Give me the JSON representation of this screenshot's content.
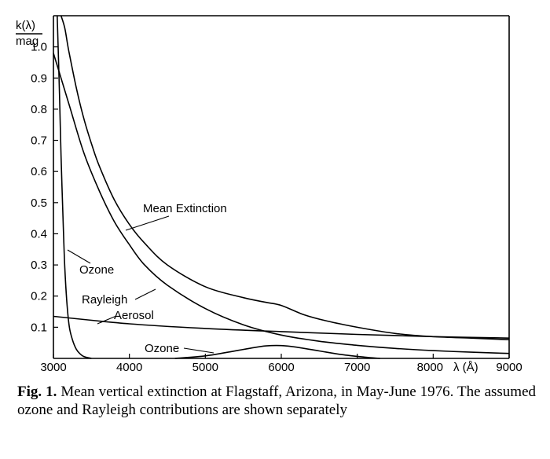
{
  "chart_data": {
    "type": "line",
    "ylabel_num": "k(λ)",
    "ylabel_den": "mag",
    "xlabel": "λ (Å)",
    "xlim": [
      3000,
      9000
    ],
    "ylim": [
      0,
      1.1
    ],
    "xticks": [
      3000,
      4000,
      5000,
      6000,
      7000,
      8000,
      9000
    ],
    "xtick_labels": [
      "3000",
      "4000",
      "5000",
      "6000",
      "7000",
      "8000",
      "9000"
    ],
    "yticks": [
      0.1,
      0.2,
      0.3,
      0.4,
      0.5,
      0.6,
      0.7,
      0.8,
      0.9,
      1.0
    ],
    "ytick_labels": [
      "0.1",
      "0.2",
      "0.3",
      "0.4",
      "0.5",
      "0.6",
      "0.7",
      "0.8",
      "0.9",
      "1.0"
    ],
    "grid": false,
    "series": [
      {
        "name": "Mean Extinction",
        "x": [
          3100,
          3150,
          3200,
          3300,
          3400,
          3500,
          3600,
          3800,
          4000,
          4200,
          4500,
          5000,
          5500,
          5800,
          6000,
          6300,
          6600,
          7000,
          7500,
          8000,
          8500,
          9000
        ],
        "y": [
          1.1,
          1.06,
          0.99,
          0.87,
          0.77,
          0.69,
          0.62,
          0.51,
          0.43,
          0.37,
          0.3,
          0.23,
          0.195,
          0.18,
          0.17,
          0.14,
          0.12,
          0.1,
          0.08,
          0.07,
          0.065,
          0.06
        ]
      },
      {
        "name": "Rayleigh",
        "x": [
          3000,
          3200,
          3400,
          3600,
          3800,
          4000,
          4200,
          4500,
          5000,
          5500,
          6000,
          6500,
          7000,
          7500,
          8000,
          8500,
          9000
        ],
        "y": [
          0.98,
          0.82,
          0.66,
          0.54,
          0.44,
          0.365,
          0.3,
          0.235,
          0.16,
          0.108,
          0.075,
          0.055,
          0.042,
          0.032,
          0.025,
          0.02,
          0.016
        ]
      },
      {
        "name": "Aerosol",
        "x": [
          3000,
          4000,
          5000,
          6000,
          7000,
          8000,
          9000
        ],
        "y": [
          0.135,
          0.111,
          0.096,
          0.086,
          0.077,
          0.07,
          0.065
        ]
      },
      {
        "name": "Ozone",
        "x": [
          3050,
          3080,
          3100,
          3130,
          3150,
          3180,
          3210,
          3250,
          3300,
          3350,
          3400,
          3500
        ],
        "y": [
          1.1,
          0.85,
          0.65,
          0.42,
          0.29,
          0.17,
          0.1,
          0.06,
          0.03,
          0.015,
          0.006,
          0.0
        ]
      },
      {
        "name": "Ozone",
        "x": [
          4600,
          5000,
          5300,
          5600,
          5800,
          6000,
          6200,
          6500,
          6800,
          7100,
          7300
        ],
        "y": [
          0.0,
          0.008,
          0.02,
          0.033,
          0.04,
          0.041,
          0.036,
          0.024,
          0.012,
          0.004,
          0.0
        ]
      }
    ],
    "annotations": [
      "Mean Extinction",
      "Ozone",
      "Rayleigh",
      "Aerosol",
      "Ozone"
    ]
  },
  "caption": {
    "label": "Fig. 1.",
    "text": "Mean vertical extinction at Flagstaff, Arizona, in May-June 1976. The assumed ozone and Rayleigh contributions are shown separately"
  }
}
